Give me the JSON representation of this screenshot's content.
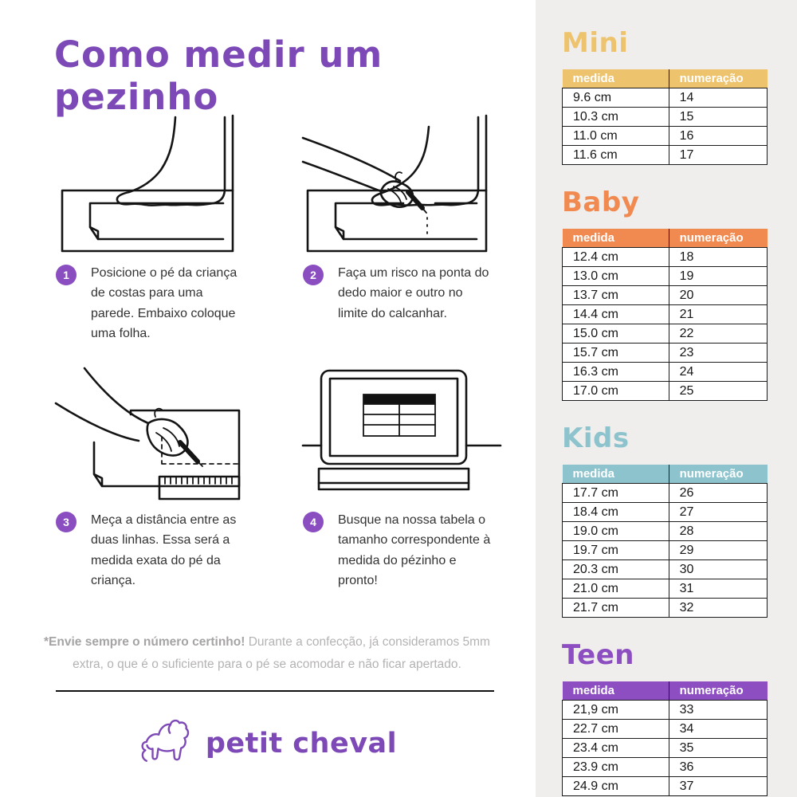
{
  "page": {
    "title": "Como medir um pezinho",
    "accent_purple": "#7d49b6",
    "panel_bg": "#efeeec"
  },
  "steps": [
    {
      "number": "1",
      "text": "Posicione o pé da criança de costas para uma parede. Embaixo coloque uma folha.",
      "illustration": "foot-against-wall-on-paper"
    },
    {
      "number": "2",
      "text": "Faça um risco na ponta do dedo maior e outro no limite do calcanhar.",
      "illustration": "hand-marking-toe-with-pen"
    },
    {
      "number": "3",
      "text": "Meça a distância entre as duas linhas. Essa será a medida exata do pé da criança.",
      "illustration": "hand-measuring-with-ruler"
    },
    {
      "number": "4",
      "text": "Busque na nossa tabela o tamanho correspondente à medida do pézinho e pronto!",
      "illustration": "laptop-with-size-table"
    }
  ],
  "footnote": {
    "bold": "*Envie sempre o número certinho!",
    "regular": " Durante a confecção, já consideramos 5mm extra, o que é o suficiente para o pé se acomodar e não ficar apertado."
  },
  "logo": {
    "text": "petit cheval",
    "icon": "horse-icon"
  },
  "size_tables": [
    {
      "title": "Mini",
      "color": "#eec36d",
      "headers": [
        "medida",
        "numeração"
      ],
      "rows": [
        [
          "9.6 cm",
          "14"
        ],
        [
          "10.3 cm",
          "15"
        ],
        [
          "11.0 cm",
          "16"
        ],
        [
          "11.6 cm",
          "17"
        ]
      ]
    },
    {
      "title": "Baby",
      "color": "#f08a50",
      "headers": [
        "medida",
        "numeração"
      ],
      "rows": [
        [
          "12.4 cm",
          "18"
        ],
        [
          "13.0 cm",
          "19"
        ],
        [
          "13.7 cm",
          "20"
        ],
        [
          "14.4 cm",
          "21"
        ],
        [
          "15.0 cm",
          "22"
        ],
        [
          "15.7 cm",
          "23"
        ],
        [
          "16.3 cm",
          "24"
        ],
        [
          "17.0 cm",
          "25"
        ]
      ]
    },
    {
      "title": "Kids",
      "color": "#8cc3cd",
      "headers": [
        "medida",
        "numeração"
      ],
      "rows": [
        [
          "17.7 cm",
          "26"
        ],
        [
          "18.4 cm",
          "27"
        ],
        [
          "19.0 cm",
          "28"
        ],
        [
          "19.7 cm",
          "29"
        ],
        [
          "20.3 cm",
          "30"
        ],
        [
          "21.0 cm",
          "31"
        ],
        [
          "21.7 cm",
          "32"
        ]
      ]
    },
    {
      "title": "Teen",
      "color": "#8c4ec1",
      "headers": [
        "medida",
        "numeração"
      ],
      "rows": [
        [
          "21,9 cm",
          "33"
        ],
        [
          "22.7 cm",
          "34"
        ],
        [
          "23.4 cm",
          "35"
        ],
        [
          "23.9 cm",
          "36"
        ],
        [
          "24.9 cm",
          "37"
        ]
      ]
    }
  ]
}
